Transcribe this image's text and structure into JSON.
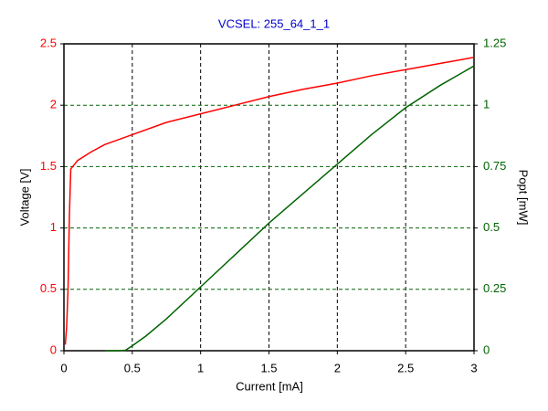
{
  "chart_data": {
    "type": "line",
    "title": "VCSEL: 255_64_1_1",
    "x_label": "Current [mA]",
    "y_label": "Voltage [V]",
    "y2_label": "Popt [mW]",
    "xlim": [
      0,
      3
    ],
    "xticks": [
      0,
      0.5,
      1,
      1.5,
      2,
      2.5,
      3
    ],
    "ylim": [
      0,
      2.5
    ],
    "yticks": [
      0,
      0.5,
      1,
      1.5,
      2,
      2.5
    ],
    "y2lim": [
      0,
      1.25
    ],
    "y2ticks": [
      0,
      0.25,
      0.5,
      0.75,
      1,
      1.25
    ],
    "grid": true,
    "series": [
      {
        "color": "#ff0000",
        "axis": "y",
        "x": [
          0.01,
          0.02,
          0.03,
          0.04,
          0.05,
          0.1,
          0.2,
          0.3,
          0.5,
          0.75,
          1,
          1.25,
          1.5,
          1.75,
          2,
          2.25,
          2.5,
          2.75,
          3
        ],
        "values": [
          0.05,
          0.2,
          0.5,
          1.1,
          1.48,
          1.55,
          1.62,
          1.68,
          1.76,
          1.86,
          1.93,
          2.0,
          2.07,
          2.13,
          2.18,
          2.24,
          2.29,
          2.34,
          2.39
        ]
      },
      {
        "color": "#006400",
        "axis": "y2",
        "x": [
          0.3,
          0.4,
          0.45,
          0.5,
          0.6,
          0.75,
          1,
          1.25,
          1.5,
          1.75,
          2,
          2.25,
          2.5,
          2.75,
          3
        ],
        "values": [
          0,
          0,
          0.002,
          0.02,
          0.06,
          0.13,
          0.26,
          0.39,
          0.52,
          0.64,
          0.76,
          0.88,
          0.99,
          1.08,
          1.16
        ]
      }
    ]
  }
}
